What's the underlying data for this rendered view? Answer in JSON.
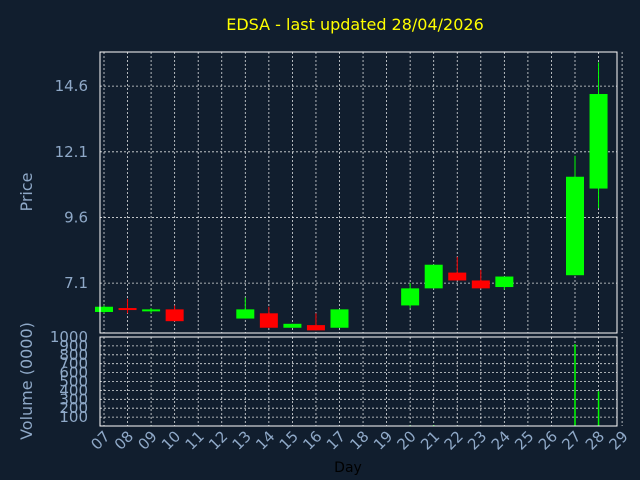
{
  "colors": {
    "background": "#111E2E",
    "title": "#FFFF00",
    "axis_text": "#8FA9C8",
    "grid": "#FFFFFF",
    "frame": "#FFFFFF",
    "up": "#00FF00",
    "down": "#FF0000",
    "xlabel": "#000000"
  },
  "chart_data": [
    {
      "type": "candlestick",
      "title": "EDSA - last updated 28/04/2026",
      "ylabel": "Price",
      "grid": true,
      "ylim": [
        5.2,
        15.9
      ],
      "yticks": [
        {
          "value": 7.1,
          "label": "7.1"
        },
        {
          "value": 9.6,
          "label": "9.6"
        },
        {
          "value": 12.1,
          "label": "12.1"
        },
        {
          "value": 14.6,
          "label": "14.6"
        }
      ],
      "xticks": [
        "07",
        "08",
        "09",
        "10",
        "11",
        "12",
        "13",
        "14",
        "15",
        "16",
        "17",
        "18",
        "19",
        "20",
        "21",
        "22",
        "23",
        "24",
        "25",
        "26",
        "27",
        "28",
        "29"
      ],
      "candles": [
        {
          "day": "07",
          "open": 6.0,
          "close": 6.2,
          "high": 6.25,
          "low": 5.95
        },
        {
          "day": "08",
          "open": 6.15,
          "close": 6.1,
          "high": 6.5,
          "low": 5.95
        },
        {
          "day": "09",
          "open": 6.05,
          "close": 6.1,
          "high": 6.15,
          "low": 5.95
        },
        {
          "day": "10",
          "open": 6.1,
          "close": 5.65,
          "high": 6.25,
          "low": 5.65
        },
        {
          "day": "13",
          "open": 5.75,
          "close": 6.1,
          "high": 6.55,
          "low": 5.75
        },
        {
          "day": "14",
          "open": 5.95,
          "close": 5.4,
          "high": 6.2,
          "low": 5.4
        },
        {
          "day": "15",
          "open": 5.4,
          "close": 5.55,
          "high": 5.55,
          "low": 5.4
        },
        {
          "day": "16",
          "open": 5.5,
          "close": 5.3,
          "high": 5.95,
          "low": 5.3
        },
        {
          "day": "17",
          "open": 5.4,
          "close": 6.1,
          "high": 6.1,
          "low": 5.4
        },
        {
          "day": "20",
          "open": 6.25,
          "close": 6.9,
          "high": 7.1,
          "low": 6.15
        },
        {
          "day": "21",
          "open": 6.9,
          "close": 7.8,
          "high": 7.8,
          "low": 6.9
        },
        {
          "day": "22",
          "open": 7.5,
          "close": 7.2,
          "high": 8.1,
          "low": 7.2
        },
        {
          "day": "23",
          "open": 7.2,
          "close": 6.9,
          "high": 7.6,
          "low": 6.9
        },
        {
          "day": "24",
          "open": 6.95,
          "close": 7.35,
          "high": 7.35,
          "low": 6.85
        },
        {
          "day": "27",
          "open": 7.4,
          "close": 11.15,
          "high": 11.95,
          "low": 7.4
        },
        {
          "day": "28",
          "open": 10.7,
          "close": 14.3,
          "high": 15.5,
          "low": 9.95
        }
      ]
    },
    {
      "type": "bar",
      "ylabel": "Volume (0000)",
      "xlabel": "Day",
      "grid": true,
      "ylim": [
        0,
        1000
      ],
      "yticks": [
        "100",
        "200",
        "300",
        "400",
        "500",
        "600",
        "700",
        "800",
        "900",
        "1000"
      ],
      "xticks": [
        "07",
        "08",
        "09",
        "10",
        "11",
        "12",
        "13",
        "14",
        "15",
        "16",
        "17",
        "18",
        "19",
        "20",
        "21",
        "22",
        "23",
        "24",
        "25",
        "26",
        "27",
        "28",
        "29"
      ],
      "categories": [
        "07",
        "08",
        "09",
        "10",
        "13",
        "14",
        "15",
        "16",
        "17",
        "20",
        "21",
        "22",
        "23",
        "24",
        "27",
        "28"
      ],
      "values": [
        1,
        2,
        6,
        4,
        4,
        3,
        2,
        4,
        5,
        8,
        10,
        6,
        4,
        3,
        920,
        390
      ]
    }
  ]
}
